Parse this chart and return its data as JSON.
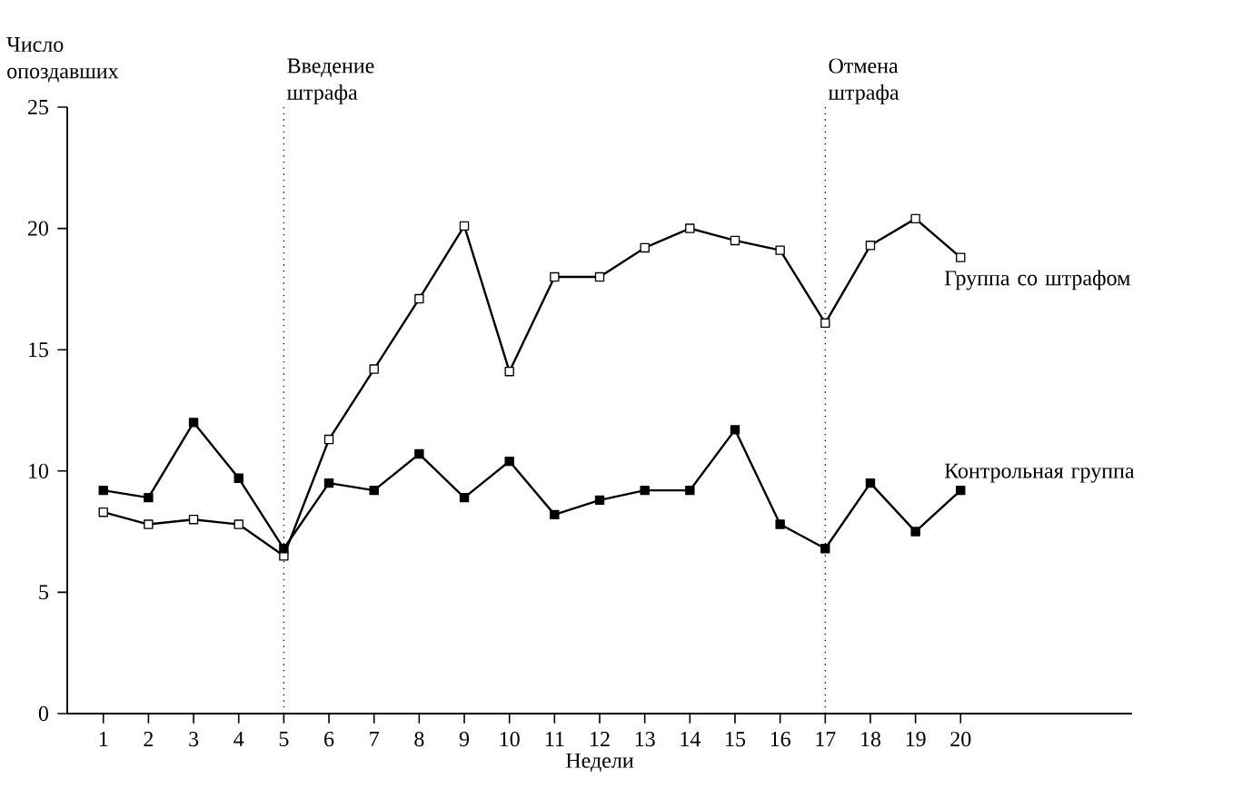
{
  "chart_data": {
    "type": "line",
    "xlabel": "Недели",
    "ylabel": "Число опоздавших",
    "x": [
      1,
      2,
      3,
      4,
      5,
      6,
      7,
      8,
      9,
      10,
      11,
      12,
      13,
      14,
      15,
      16,
      17,
      18,
      19,
      20
    ],
    "series": [
      {
        "name": "Группа со штрафом",
        "color": "#000000",
        "values": [
          8.3,
          7.8,
          8.0,
          7.8,
          6.5,
          11.3,
          14.2,
          17.1,
          20.1,
          14.1,
          18.0,
          18.0,
          19.2,
          20.0,
          19.5,
          19.1,
          16.1,
          19.3,
          20.4,
          18.8
        ]
      },
      {
        "name": "Контрольная группа",
        "color": "#000000",
        "values": [
          9.2,
          8.9,
          12.0,
          9.7,
          6.8,
          9.5,
          9.2,
          10.7,
          8.9,
          10.4,
          8.2,
          8.8,
          9.2,
          9.2,
          11.7,
          7.8,
          6.8,
          9.5,
          7.5,
          9.2
        ]
      }
    ],
    "xlim": [
      0.2,
      23.8
    ],
    "ylim": [
      0,
      25
    ],
    "xticks": [
      1,
      2,
      3,
      4,
      5,
      6,
      7,
      8,
      9,
      10,
      11,
      12,
      13,
      14,
      15,
      16,
      17,
      18,
      19,
      20
    ],
    "yticks": [
      0,
      5,
      10,
      15,
      20,
      25
    ],
    "marker": "square",
    "line_style": "solid",
    "ref_lines": [
      {
        "axis": "x",
        "value": 5,
        "label": "Введение штрафа",
        "line_style": "dotted"
      },
      {
        "axis": "x",
        "value": 17,
        "label": "Отмена штрафа",
        "line_style": "dotted"
      }
    ]
  }
}
